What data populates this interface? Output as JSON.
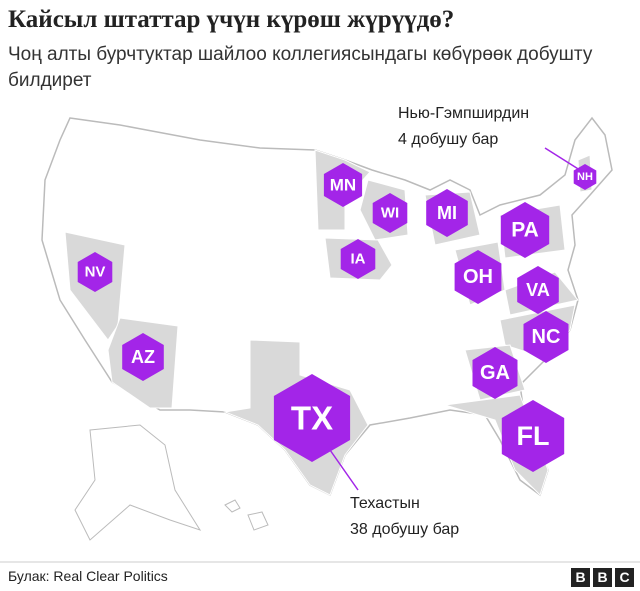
{
  "header": {
    "title": "Кайсыл штаттар үчүн күрөш жүрүүдө?",
    "subtitle": "Чоң алты бурчтуктар шайлоо коллегиясындагы көбүрөөк добушту билдирет"
  },
  "states": [
    "MN",
    "WI",
    "MI",
    "IA",
    "PA",
    "OH",
    "VA",
    "NC",
    "GA",
    "FL",
    "TX",
    "AZ",
    "NV",
    "NH"
  ],
  "annotations": [
    {
      "lines": [
        "Нью-Гэмпширдин",
        "4 добушу бар"
      ]
    },
    {
      "lines": [
        "Техастын",
        "38 добушу бар"
      ]
    }
  ],
  "footer": {
    "source": "Булак: Real Clear Politics",
    "logo": [
      "B",
      "B",
      "C"
    ]
  }
}
